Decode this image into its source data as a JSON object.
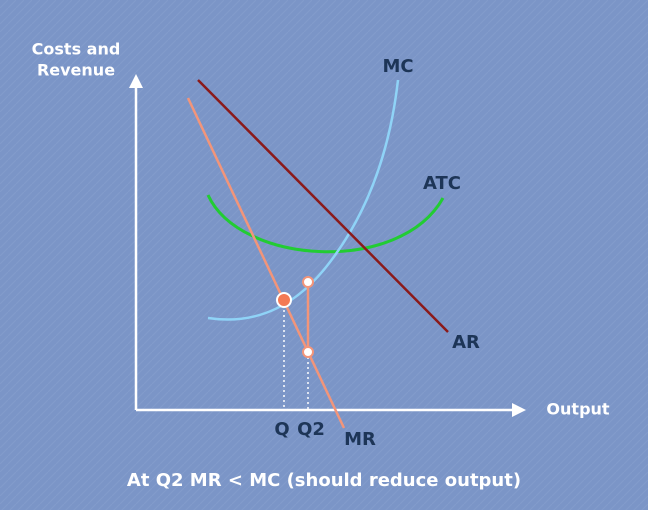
{
  "y_axis_label": {
    "lines": [
      "Costs and",
      "Revenue"
    ]
  },
  "x_axis_label": "Output",
  "curves": [
    {
      "label": "MC"
    },
    {
      "label": "ATC"
    },
    {
      "label": "AR"
    },
    {
      "label": "MR"
    }
  ],
  "quantities": [
    {
      "label": "Q"
    },
    {
      "label": "Q2"
    }
  ],
  "caption": "At Q2 MR < MC (should reduce output)"
}
